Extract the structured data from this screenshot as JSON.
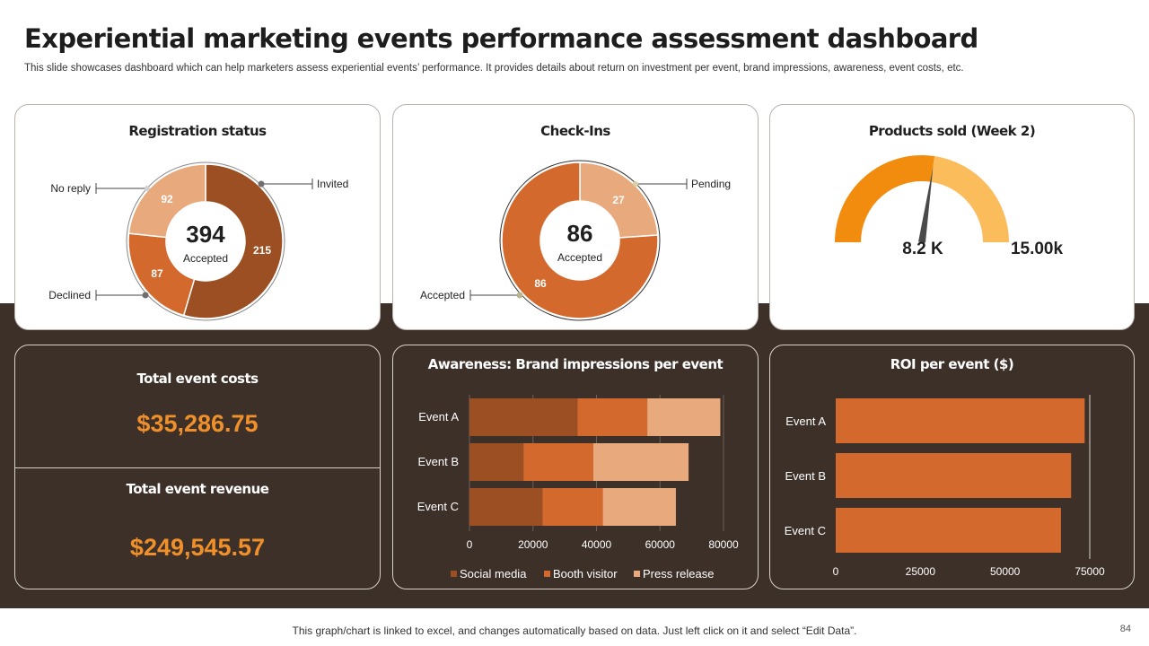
{
  "header": {
    "title": "Experiential marketing events performance assessment dashboard",
    "subtitle": "This slide showcases dashboard which can help marketers assess experiential events’ performance. It provides details about return on investment per event, brand impressions, awareness, event costs, etc."
  },
  "colors": {
    "dark": "#9b4f22",
    "mid": "#d4692e",
    "light": "#e8a97c",
    "gauge_fill": "#f28c0f",
    "gauge_rest": "#fbbc5c",
    "accent_money": "#f0902a",
    "background_dark": "#3d3029"
  },
  "registration": {
    "title": "Registration status",
    "center_value": "394",
    "center_label": "Accepted",
    "callouts": {
      "invited": "Invited",
      "no_reply": "No reply",
      "declined": "Declined"
    }
  },
  "checkins": {
    "title": "Check-Ins",
    "center_value": "86",
    "center_label": "Accepted",
    "callouts": {
      "pending": "Pending",
      "accepted": "Accepted"
    }
  },
  "products": {
    "title": "Products sold (Week 2)",
    "value_label": "8.2 K",
    "max_label": "15.00k"
  },
  "costs": {
    "cost_title": "Total event costs",
    "cost_value": "$35,286.75",
    "revenue_title": "Total event revenue",
    "revenue_value": "$249,545.57"
  },
  "chart_data": [
    {
      "type": "pie",
      "title": "Registration status",
      "series": [
        {
          "name": "Invited",
          "value": 215
        },
        {
          "name": "Declined",
          "value": 87
        },
        {
          "name": "No reply",
          "value": 92
        }
      ]
    },
    {
      "type": "pie",
      "title": "Check-Ins",
      "series": [
        {
          "name": "Pending",
          "value": 27
        },
        {
          "name": "Accepted",
          "value": 86
        }
      ]
    },
    {
      "type": "gauge",
      "title": "Products sold (Week 2)",
      "value": 8200,
      "max": 15000
    },
    {
      "type": "bar",
      "orientation": "horizontal",
      "stacked": true,
      "title": "Awareness: Brand impressions per event",
      "categories": [
        "Event A",
        "Event B",
        "Event C"
      ],
      "series": [
        {
          "name": "Social media",
          "values": [
            34000,
            17000,
            23000
          ]
        },
        {
          "name": "Booth visitor",
          "values": [
            22000,
            22000,
            19000
          ]
        },
        {
          "name": "Press release",
          "values": [
            23000,
            30000,
            23000
          ]
        }
      ],
      "xlim": [
        0,
        80000
      ],
      "xticks": [
        0,
        20000,
        40000,
        60000,
        80000
      ],
      "legend": "bottom"
    },
    {
      "type": "bar",
      "orientation": "horizontal",
      "title": "ROI per event ($)",
      "categories": [
        "Event A",
        "Event B",
        "Event C"
      ],
      "values": [
        73500,
        69500,
        66500
      ],
      "xlim": [
        0,
        75000
      ],
      "xticks": [
        0,
        25000,
        50000,
        75000
      ]
    }
  ],
  "footer": {
    "note": "This graph/chart is linked to excel, and changes automatically based on data. Just left click on it and select “Edit Data”.",
    "page_number": "84"
  }
}
